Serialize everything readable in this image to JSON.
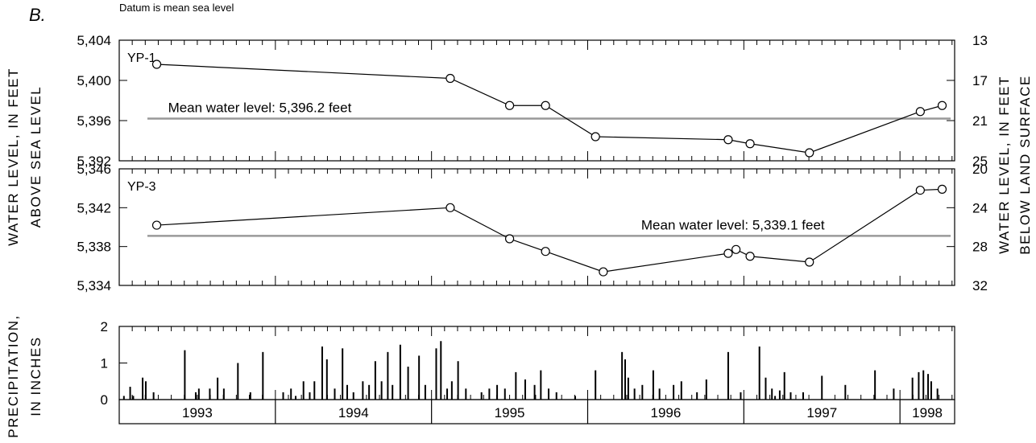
{
  "figure": {
    "panel_letter": "B.",
    "datum_note": "Datum is mean sea level"
  },
  "left_axis_labels": {
    "upper": "WATER LEVEL, IN FEET",
    "upper2": "ABOVE SEA LEVEL",
    "lower": "PRECIPITATION,",
    "lower2": "IN INCHES"
  },
  "right_axis_labels": {
    "line1": "WATER LEVEL, IN FEET",
    "line2": "BELOW LAND SURFACE"
  },
  "colors": {
    "series": "#000000",
    "mean_line": "#999999",
    "axis": "#000000"
  },
  "chart_data": [
    {
      "type": "line",
      "well": "YP-1",
      "mean_label": "Mean water level: 5,396.2 feet",
      "mean_value": 5396.2,
      "ylim": [
        5392,
        5404
      ],
      "yticks": [
        5392,
        5396,
        5400,
        5404
      ],
      "yticklabels": [
        "5,392",
        "5,396",
        "5,400",
        "5,404"
      ],
      "y2lim": [
        25,
        13
      ],
      "y2ticks": [
        13,
        17,
        21,
        25
      ],
      "y2ticklabels": [
        "13",
        "17",
        "21",
        "25"
      ],
      "xlim": [
        1993.0,
        1998.35
      ],
      "x": [
        1993.24,
        1995.12,
        1995.5,
        1995.73,
        1996.05,
        1996.9,
        1997.04,
        1997.42,
        1998.13,
        1998.27
      ],
      "y": [
        5401.6,
        5400.2,
        5397.5,
        5397.5,
        5394.4,
        5394.1,
        5393.7,
        5392.8,
        5396.9,
        5397.5
      ]
    },
    {
      "type": "line",
      "well": "YP-3",
      "mean_label": "Mean water level: 5,339.1 feet",
      "mean_value": 5339.1,
      "ylim": [
        5334,
        5346
      ],
      "yticks": [
        5334,
        5338,
        5342,
        5346
      ],
      "yticklabels": [
        "5,334",
        "5,338",
        "5,342",
        "5,346"
      ],
      "y2lim": [
        32,
        20
      ],
      "y2ticks": [
        20,
        24,
        28,
        32
      ],
      "y2ticklabels": [
        "20",
        "24",
        "28",
        "32"
      ],
      "xlim": [
        1993.0,
        1998.35
      ],
      "x": [
        1993.24,
        1995.12,
        1995.5,
        1995.73,
        1996.1,
        1996.9,
        1996.95,
        1997.04,
        1997.42,
        1998.13,
        1998.27
      ],
      "y": [
        5340.2,
        5342.0,
        5338.8,
        5337.5,
        5335.4,
        5337.3,
        5337.7,
        5337.0,
        5336.4,
        5343.8,
        5343.9
      ]
    },
    {
      "type": "bar",
      "name": "Precipitation",
      "ylim": [
        0,
        2
      ],
      "yticks": [
        0,
        1,
        2
      ],
      "yticklabels": [
        "0",
        "1",
        "2"
      ],
      "xlim": [
        1993.0,
        1998.35
      ],
      "years": [
        "1993",
        "1994",
        "1995",
        "1996",
        "1997",
        "1998"
      ],
      "year_boundaries": [
        1994.0,
        1995.0,
        1996.0,
        1997.0,
        1998.0
      ],
      "x": [
        1993.03,
        1993.07,
        1993.09,
        1993.15,
        1993.17,
        1993.22,
        1993.42,
        1993.49,
        1993.51,
        1993.58,
        1993.63,
        1993.67,
        1993.76,
        1993.84,
        1993.92,
        1994.05,
        1994.1,
        1994.13,
        1994.18,
        1994.22,
        1994.25,
        1994.3,
        1994.33,
        1994.38,
        1994.43,
        1994.46,
        1994.5,
        1994.56,
        1994.6,
        1994.64,
        1994.68,
        1994.72,
        1994.75,
        1994.8,
        1994.85,
        1994.92,
        1994.96,
        1995.03,
        1995.06,
        1995.1,
        1995.13,
        1995.17,
        1995.22,
        1995.32,
        1995.37,
        1995.42,
        1995.47,
        1995.54,
        1995.6,
        1995.66,
        1995.7,
        1995.75,
        1995.8,
        1995.92,
        1996.05,
        1996.22,
        1996.24,
        1996.26,
        1996.3,
        1996.35,
        1996.42,
        1996.46,
        1996.55,
        1996.6,
        1996.7,
        1996.76,
        1996.9,
        1996.98,
        1997.1,
        1997.14,
        1997.18,
        1997.2,
        1997.23,
        1997.26,
        1997.3,
        1997.38,
        1997.5,
        1997.65,
        1997.84,
        1997.96,
        1998.08,
        1998.12,
        1998.15,
        1998.18,
        1998.2,
        1998.24
      ],
      "values": [
        0.1,
        0.35,
        0.1,
        0.6,
        0.5,
        0.2,
        1.35,
        0.2,
        0.3,
        0.3,
        0.6,
        0.3,
        1.0,
        0.2,
        1.3,
        0.2,
        0.3,
        0.1,
        0.5,
        0.2,
        0.5,
        1.45,
        1.1,
        0.3,
        1.4,
        0.4,
        0.2,
        0.5,
        0.4,
        1.05,
        0.5,
        1.3,
        0.4,
        1.5,
        0.9,
        1.2,
        0.4,
        1.4,
        1.6,
        0.3,
        0.5,
        1.05,
        0.3,
        0.2,
        0.3,
        0.4,
        0.3,
        0.75,
        0.55,
        0.4,
        0.8,
        0.3,
        0.2,
        0.1,
        0.8,
        1.3,
        1.1,
        0.6,
        0.3,
        0.4,
        0.8,
        0.3,
        0.4,
        0.5,
        0.2,
        0.55,
        1.3,
        0.2,
        1.45,
        0.6,
        0.3,
        0.1,
        0.25,
        0.75,
        0.2,
        0.2,
        0.65,
        0.4,
        0.8,
        0.3,
        0.6,
        0.75,
        0.8,
        0.7,
        0.5,
        0.3
      ]
    }
  ]
}
